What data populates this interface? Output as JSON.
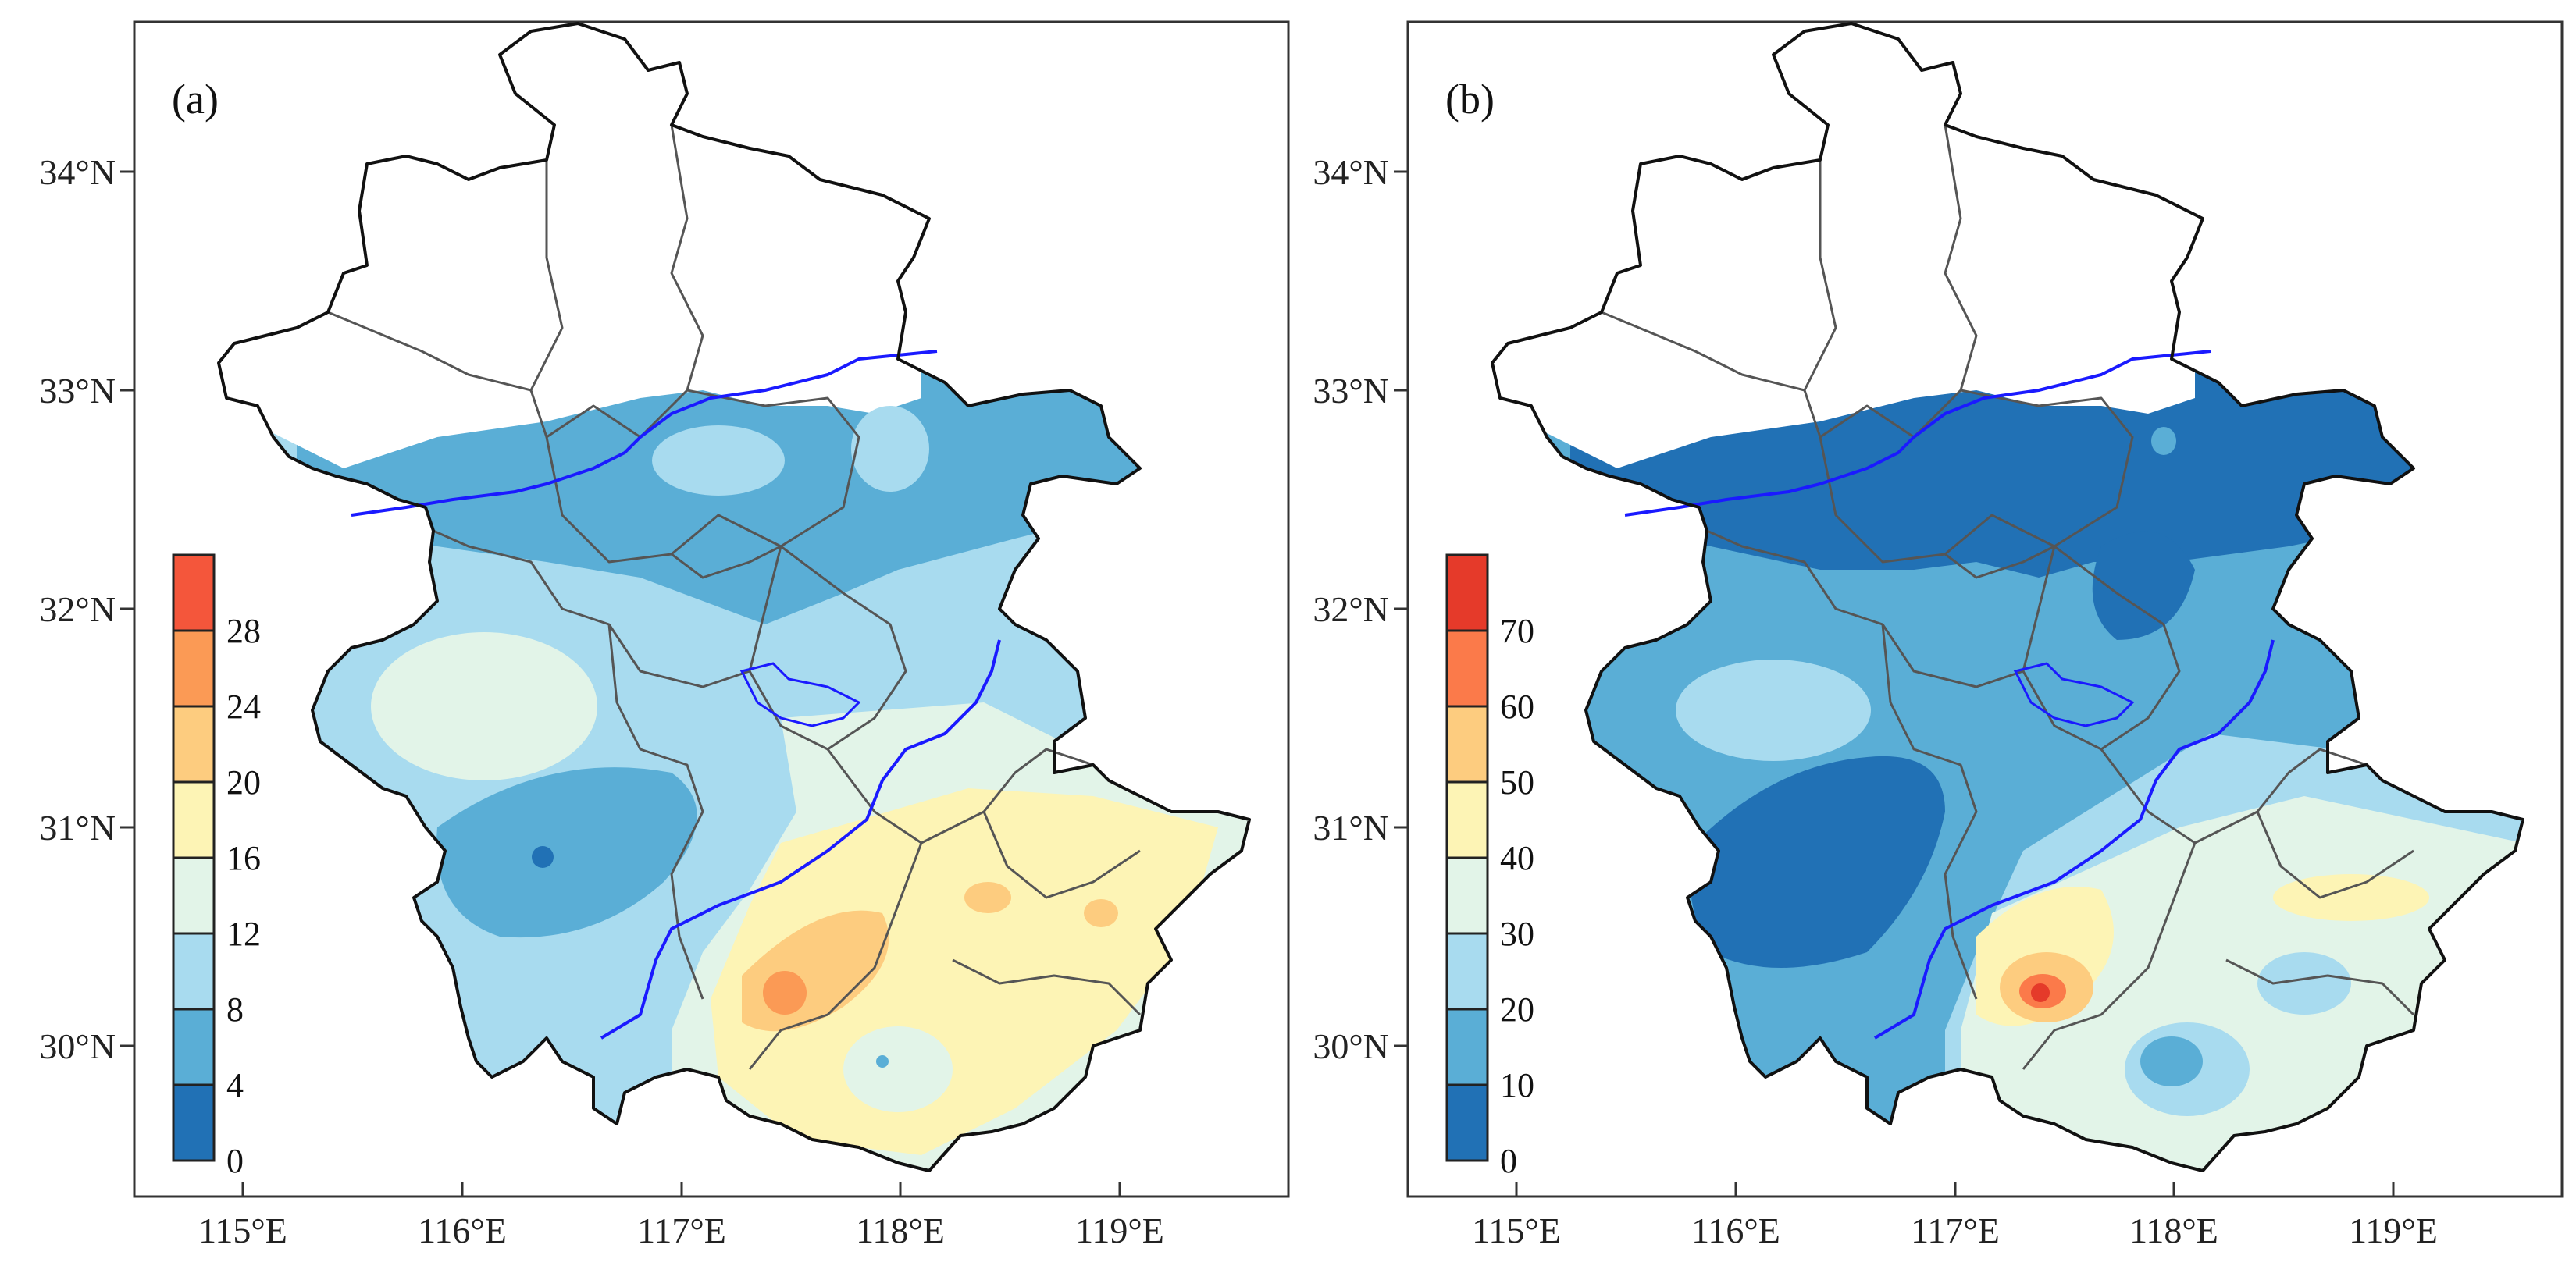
{
  "x_ticks": [
    "115°E",
    "116°E",
    "117°E",
    "118°E",
    "119°E"
  ],
  "y_ticks": [
    "34°N",
    "33°N",
    "32°N",
    "31°N",
    "30°N"
  ],
  "panels": [
    {
      "label": "(a)",
      "levels": [
        "0",
        "4",
        "8",
        "12",
        "16",
        "20",
        "24",
        "28"
      ],
      "colors": [
        "#2171b5",
        "#5aaed6",
        "#a8dbef",
        "#e2f4e8",
        "#fdf4b5",
        "#fdcc7f",
        "#fb9a55",
        "#f4563b"
      ]
    },
    {
      "label": "(b)",
      "levels": [
        "0",
        "10",
        "20",
        "30",
        "40",
        "50",
        "60",
        "70"
      ],
      "colors": [
        "#2171b5",
        "#5aaed6",
        "#a8dbef",
        "#e2f4e8",
        "#fdf4b5",
        "#fdcc7f",
        "#fb7a4a",
        "#e53a2a"
      ]
    }
  ]
}
